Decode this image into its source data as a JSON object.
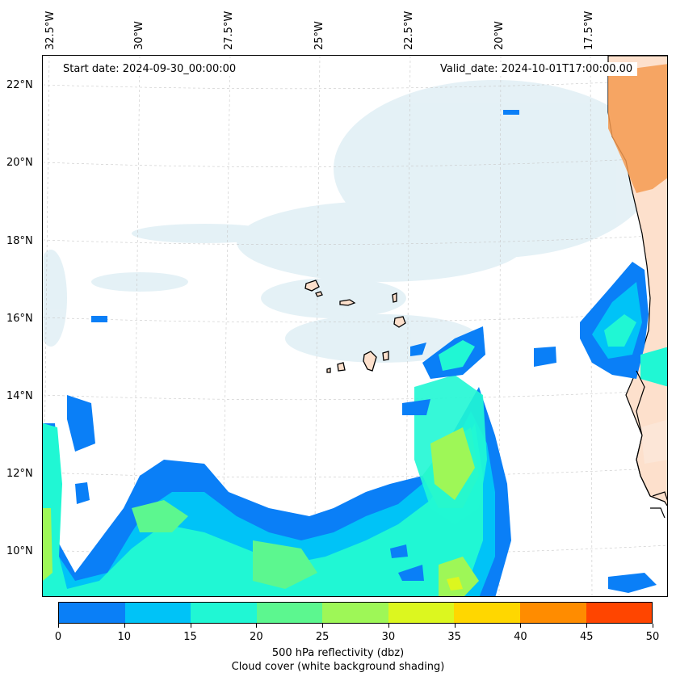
{
  "header": {
    "start_date": "Start date: 2024-09-30_00:00:00",
    "valid_date": "Valid_date: 2024-10-01T17:00:00.00"
  },
  "axes": {
    "longitude_labels": [
      "32.5°W",
      "30°W",
      "27.5°W",
      "25°W",
      "22.5°W",
      "20°W",
      "17.5°W"
    ],
    "latitude_labels": [
      "22°N",
      "20°N",
      "18°N",
      "16°N",
      "14°N",
      "12°N",
      "10°N"
    ]
  },
  "colorbar": {
    "ticks": [
      "0",
      "5",
      "10",
      "15",
      "20",
      "25",
      "30",
      "35",
      "40",
      "45",
      "50"
    ],
    "colors": [
      "#0a7ff7",
      "#00c3f7",
      "#20f7d4",
      "#5cf78f",
      "#9ef757",
      "#dcf71f",
      "#ffd700",
      "#ff8c00",
      "#ff4500"
    ],
    "title_line1": "500 hPa reflectivity (dbz)",
    "title_line2": "Cloud cover (white background shading)"
  },
  "map": {
    "land_color": "#fde0cc",
    "desert_color": "#f59a50",
    "cloud_color": "#cfe6ef",
    "coastline_color": "#000000",
    "grid_color": "#c8c8c8"
  }
}
